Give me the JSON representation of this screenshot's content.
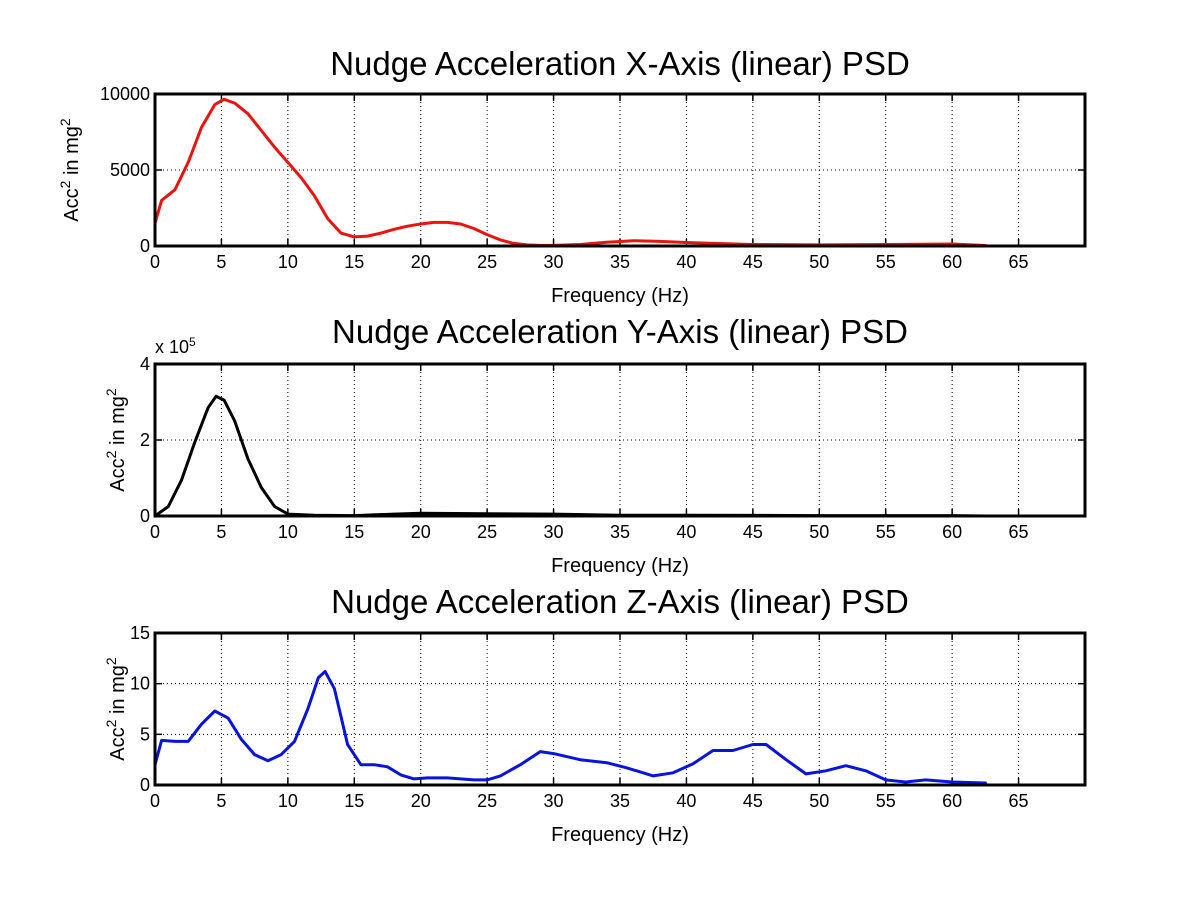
{
  "chart_data": [
    {
      "type": "line",
      "title": "Nudge Acceleration X-Axis (linear) PSD",
      "xlabel": "Frequency (Hz)",
      "ylabel": "Acc² in mg²",
      "ylabel_base": "Acc",
      "ylabel_mid": " in mg",
      "ylabel_sup": "2",
      "multiplier": "",
      "xlim": [
        0,
        70
      ],
      "ylim": [
        0,
        10000
      ],
      "xticks": [
        0,
        5,
        10,
        15,
        20,
        25,
        30,
        35,
        40,
        45,
        50,
        55,
        60,
        65
      ],
      "yticks": [
        0,
        5000,
        10000
      ],
      "grid": true,
      "color": "#e8140f",
      "series": [
        {
          "x": [
            0,
            0.5,
            1.5,
            2.5,
            3.5,
            4.5,
            5.2,
            6,
            7,
            8,
            9,
            10,
            11,
            12,
            13,
            14,
            15,
            16,
            17,
            18,
            19,
            20,
            21,
            22,
            23,
            24,
            25,
            26,
            27,
            28,
            29,
            30,
            32,
            34,
            36,
            38,
            40,
            42,
            45,
            50,
            55,
            60,
            62.5
          ],
          "y": [
            1500,
            3000,
            3700,
            5500,
            7800,
            9300,
            9650,
            9400,
            8700,
            7600,
            6500,
            5500,
            4500,
            3300,
            1800,
            850,
            600,
            650,
            850,
            1100,
            1300,
            1450,
            1550,
            1550,
            1450,
            1150,
            750,
            400,
            170,
            70,
            40,
            40,
            100,
            250,
            350,
            300,
            230,
            170,
            100,
            70,
            100,
            130,
            30
          ]
        }
      ]
    },
    {
      "type": "line",
      "title": "Nudge Acceleration Y-Axis (linear) PSD",
      "xlabel": "Frequency (Hz)",
      "ylabel": "Acc² in mg²",
      "ylabel_base": "Acc",
      "ylabel_mid": " in mg",
      "ylabel_sup": "2",
      "multiplier": "x 10",
      "multiplier_exp": "5",
      "xlim": [
        0,
        70
      ],
      "ylim": [
        0,
        4
      ],
      "xticks": [
        0,
        5,
        10,
        15,
        20,
        25,
        30,
        35,
        40,
        45,
        50,
        55,
        60,
        65
      ],
      "yticks": [
        0,
        2,
        4
      ],
      "grid": true,
      "color": "#000000",
      "series": [
        {
          "x": [
            0,
            1,
            2,
            3,
            4,
            4.6,
            5.2,
            6,
            7,
            8,
            9,
            10,
            12,
            15,
            18,
            20,
            25,
            30,
            35,
            40,
            50,
            60,
            62.5
          ],
          "y": [
            0,
            0.25,
            0.95,
            1.95,
            2.85,
            3.15,
            3.05,
            2.5,
            1.5,
            0.75,
            0.25,
            0.05,
            0.02,
            0.01,
            0.05,
            0.07,
            0.06,
            0.05,
            0.02,
            0.02,
            0.01,
            0.01,
            0
          ]
        }
      ]
    },
    {
      "type": "line",
      "title": "Nudge Acceleration Z-Axis (linear) PSD",
      "xlabel": "Frequency (Hz)",
      "ylabel": "Acc² in mg²",
      "ylabel_base": "Acc",
      "ylabel_mid": " in mg",
      "ylabel_sup": "2",
      "multiplier": "",
      "xlim": [
        0,
        70
      ],
      "ylim": [
        0,
        15
      ],
      "xticks": [
        0,
        5,
        10,
        15,
        20,
        25,
        30,
        35,
        40,
        45,
        50,
        55,
        60,
        65
      ],
      "yticks": [
        0,
        5,
        10,
        15
      ],
      "grid": true,
      "color": "#0a14d8",
      "series": [
        {
          "x": [
            0,
            0.5,
            1.5,
            2.5,
            3.5,
            4.5,
            5.5,
            6.5,
            7.5,
            8.5,
            9.5,
            10.5,
            11.5,
            12.3,
            12.8,
            13.5,
            14.5,
            15.5,
            16.5,
            17.5,
            18.5,
            19.5,
            20.5,
            22,
            24,
            25,
            26,
            27.5,
            29,
            30,
            32,
            34,
            35.5,
            37.5,
            39,
            40.5,
            42,
            43.5,
            45,
            46,
            47.5,
            49,
            50.5,
            52,
            53.5,
            55,
            56.5,
            58,
            60,
            62.5
          ],
          "y": [
            2,
            4.4,
            4.3,
            4.3,
            6,
            7.3,
            6.6,
            4.5,
            3,
            2.4,
            3,
            4.3,
            7.5,
            10.6,
            11.2,
            9.5,
            4,
            2,
            2,
            1.8,
            1,
            0.6,
            0.7,
            0.7,
            0.5,
            0.5,
            0.9,
            2,
            3.3,
            3.1,
            2.5,
            2.2,
            1.7,
            0.9,
            1.2,
            2.1,
            3.4,
            3.4,
            4,
            4,
            2.5,
            1.1,
            1.4,
            1.9,
            1.4,
            0.5,
            0.3,
            0.5,
            0.3,
            0.2
          ]
        }
      ]
    }
  ]
}
